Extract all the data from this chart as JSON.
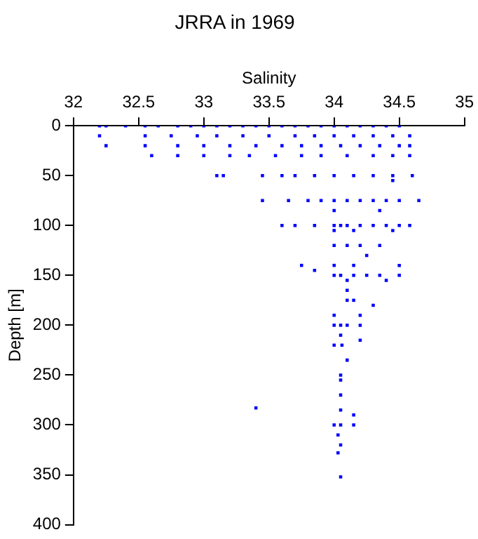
{
  "chart_data": {
    "type": "scatter",
    "title": "JRRA in 1969",
    "xlabel": "Salinity",
    "ylabel": "Depth [m]",
    "xlim": [
      32,
      35
    ],
    "xticks": [
      32,
      32.5,
      33,
      33.5,
      34,
      34.5,
      35
    ],
    "ylim": [
      400,
      0
    ],
    "yticks": [
      0,
      50,
      100,
      150,
      200,
      250,
      300,
      350,
      400
    ],
    "grid": false,
    "legend": false,
    "marker": "square",
    "series": [
      {
        "color": "#0000ff",
        "x": [
          32.2,
          32.25,
          32.4,
          32.55,
          32.65,
          32.8,
          32.9,
          33.0,
          33.1,
          33.2,
          33.3,
          33.4,
          33.5,
          33.6,
          33.7,
          33.8,
          33.9,
          34.0,
          34.1,
          34.2,
          34.3,
          34.4,
          34.5,
          32.2,
          32.55,
          32.75,
          32.95,
          33.1,
          33.3,
          33.5,
          33.7,
          33.85,
          34.0,
          34.15,
          34.3,
          34.45,
          34.58,
          32.25,
          32.55,
          32.8,
          33.0,
          33.2,
          33.4,
          33.6,
          33.75,
          33.9,
          34.05,
          34.2,
          34.35,
          34.5,
          34.58,
          32.6,
          32.8,
          33.0,
          33.2,
          33.35,
          33.55,
          33.75,
          33.9,
          34.1,
          34.3,
          34.45,
          34.58,
          33.1,
          33.15,
          33.45,
          33.6,
          33.7,
          33.85,
          34.0,
          34.15,
          34.3,
          34.45,
          34.6,
          34.45,
          33.45,
          33.65,
          33.8,
          33.9,
          34.0,
          34.1,
          34.2,
          34.3,
          34.4,
          34.5,
          34.65,
          34.0,
          34.35,
          33.6,
          33.7,
          33.85,
          34.0,
          34.05,
          34.1,
          34.2,
          34.3,
          34.4,
          34.5,
          34.58,
          34.0,
          34.15,
          34.45,
          34.0,
          34.1,
          34.2,
          34.35,
          34.25,
          33.75,
          34.0,
          34.15,
          34.5,
          33.85,
          34.0,
          34.05,
          34.15,
          34.25,
          34.35,
          34.5,
          34.1,
          34.4,
          34.1,
          34.1,
          34.15,
          34.3,
          34.0,
          34.2,
          34.0,
          34.05,
          34.1,
          34.2,
          34.05,
          34.2,
          34.0,
          34.06,
          34.1,
          34.05,
          34.05,
          34.05,
          33.4,
          34.05,
          34.15,
          34.0,
          34.05,
          34.15,
          34.03,
          34.05,
          34.03,
          34.05
        ],
        "values": [
          0,
          0,
          0,
          0,
          0,
          0,
          0,
          0,
          0,
          0,
          0,
          0,
          0,
          0,
          0,
          0,
          0,
          0,
          0,
          0,
          0,
          0,
          0,
          10,
          10,
          10,
          10,
          10,
          10,
          10,
          10,
          10,
          10,
          10,
          10,
          10,
          10,
          20,
          20,
          20,
          20,
          20,
          20,
          20,
          20,
          20,
          20,
          20,
          20,
          20,
          20,
          30,
          30,
          30,
          30,
          30,
          30,
          30,
          30,
          30,
          30,
          30,
          30,
          50,
          50,
          50,
          50,
          50,
          50,
          50,
          50,
          50,
          50,
          50,
          55,
          75,
          75,
          75,
          75,
          75,
          75,
          75,
          75,
          75,
          75,
          75,
          85,
          85,
          100,
          100,
          100,
          100,
          100,
          100,
          100,
          100,
          100,
          100,
          100,
          105,
          105,
          105,
          120,
          120,
          120,
          120,
          130,
          140,
          140,
          140,
          140,
          145,
          150,
          150,
          150,
          150,
          150,
          150,
          155,
          155,
          165,
          175,
          175,
          180,
          190,
          190,
          200,
          200,
          200,
          200,
          210,
          215,
          220,
          220,
          235,
          250,
          255,
          270,
          283,
          285,
          290,
          300,
          300,
          300,
          310,
          320,
          328,
          352
        ]
      }
    ]
  }
}
